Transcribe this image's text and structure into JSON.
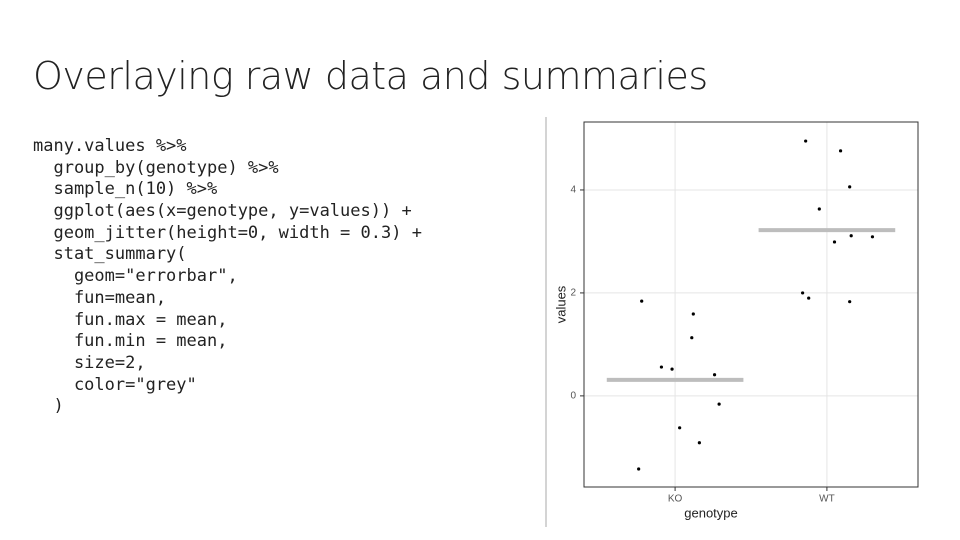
{
  "header": {
    "title": "Overlaying raw data and summaries"
  },
  "code": {
    "lines": [
      "many.values %>%",
      "  group_by(genotype) %>%",
      "  sample_n(10) %>%",
      "  ggplot(aes(x=genotype, y=values)) +",
      "  geom_jitter(height=0, width = 0.3) +",
      "  stat_summary(",
      "    geom=\"errorbar\",",
      "    fun=mean,",
      "    fun.max = mean,",
      "    fun.min = mean,",
      "    size=2,",
      "    color=\"grey\"",
      "  )"
    ]
  },
  "chart_data": {
    "type": "scatter",
    "x_label": "genotype",
    "y_label": "values",
    "xlim": [
      0.4,
      2.6
    ],
    "xticks": [
      {
        "value": 1,
        "label": "KO"
      },
      {
        "value": 2,
        "label": "WT"
      }
    ],
    "ylim": [
      -1.77,
      5.32
    ],
    "yticks": [
      0,
      2,
      4
    ],
    "grid": true,
    "series": [
      {
        "color": "#000000",
        "x": [
          0.78,
          1.12,
          1.11,
          0.91,
          0.98,
          1.26,
          1.29,
          1.03,
          1.16,
          0.76,
          1.86,
          2.09,
          2.15,
          1.95,
          2.05,
          2.16,
          2.3,
          1.84,
          1.88,
          2.15
        ],
        "values": [
          1.84,
          1.59,
          1.13,
          0.56,
          0.52,
          0.41,
          -0.16,
          -0.62,
          -0.91,
          -1.42,
          4.95,
          4.76,
          4.06,
          3.63,
          2.99,
          3.11,
          3.09,
          2.0,
          1.9,
          1.83
        ]
      }
    ],
    "summary": {
      "color": "#bdbdbd",
      "x": [
        1,
        2
      ],
      "values": [
        0.31,
        3.22
      ]
    }
  }
}
